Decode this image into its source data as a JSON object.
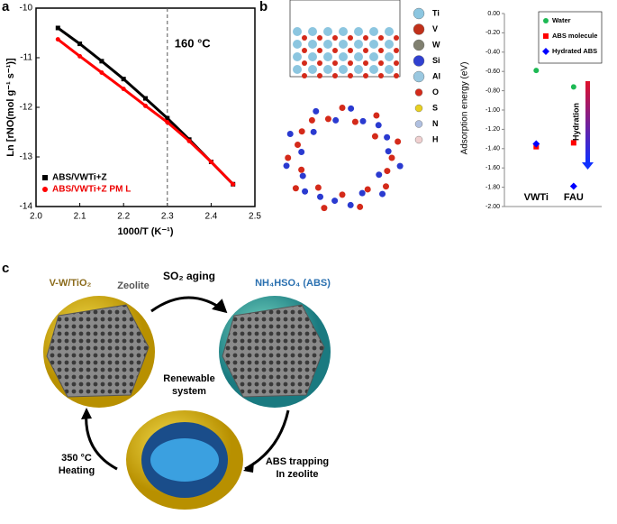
{
  "panel_labels": [
    "a",
    "b",
    "c"
  ],
  "chart_data": [
    {
      "type": "line",
      "xlabel": "1000/T (K⁻¹)",
      "ylabel": "Ln [rNO(mol g⁻¹ s⁻¹)]",
      "x": [
        2.05,
        2.1,
        2.15,
        2.2,
        2.25,
        2.3,
        2.35,
        2.4,
        2.45
      ],
      "series": [
        {
          "name": "ABS/VWTi+Z",
          "color": "#000000",
          "marker": "square",
          "values": [
            -10.4,
            -10.72,
            -11.07,
            -11.43,
            -11.82,
            -12.22,
            -12.65,
            -13.1,
            -13.55
          ]
        },
        {
          "name": "ABS/VWTi+Z PM L",
          "color": "#ff0000",
          "marker": "circle",
          "values": [
            -10.63,
            -10.97,
            -11.3,
            -11.63,
            -11.97,
            -12.3,
            -12.68,
            -13.1,
            -13.55
          ]
        }
      ],
      "xlim": [
        2.0,
        2.5
      ],
      "xticks": [
        {
          "value": 2.0,
          "label": "2.0"
        },
        2.1,
        2.2,
        2.3,
        2.4,
        2.5
      ],
      "ylim": [
        -10,
        -14
      ],
      "yticks": [
        -10,
        -11,
        -12,
        -13,
        -14
      ],
      "vline": 2.3,
      "annotation": "160 °C",
      "legend": "lower-left"
    },
    {
      "type": "scatter",
      "ylabel": "Adsorption energy (eV)",
      "categories": [
        "VWTi",
        "FAU"
      ],
      "series": [
        {
          "name": "Water",
          "color": "#1db954",
          "marker": "circle",
          "values": [
            -0.59,
            -0.76
          ]
        },
        {
          "name": "ABS molecule",
          "color": "#ff0000",
          "marker": "square",
          "values": [
            -1.38,
            -1.34
          ]
        },
        {
          "name": "Hydrated ABS",
          "color": "#0000ff",
          "marker": "diamond",
          "values": [
            -1.35,
            -1.79
          ]
        }
      ],
      "ylim": [
        0,
        -2.0
      ],
      "yticks": [
        {
          "value": 0,
          "label": "0.00"
        },
        {
          "value": -0.2,
          "label": "-0.20"
        },
        {
          "value": -0.4,
          "label": "-0.40"
        },
        {
          "value": -0.6,
          "label": "-0.60"
        },
        {
          "value": -0.8,
          "label": "-0.80"
        },
        {
          "value": -1.0,
          "label": "-1.00"
        },
        {
          "value": -1.2,
          "label": "-1.20"
        },
        {
          "value": -1.4,
          "label": "-1.40"
        },
        {
          "value": -1.6,
          "label": "-1.60"
        },
        {
          "value": -1.8,
          "label": "-1.80"
        },
        {
          "value": -2.0,
          "label": "-2.00"
        }
      ],
      "arrow_label": "Hydration",
      "legend": "upper-right"
    }
  ],
  "atom_legend": [
    "Ti",
    "V",
    "W",
    "Si",
    "Al",
    "O",
    "S",
    "N",
    "H"
  ],
  "scheme": {
    "catalyst": "V-W/TiO₂",
    "zeolite": "Zeolite",
    "step1": "SO₂ aging",
    "abs": "NH₄HSO₄ (ABS)",
    "center": [
      "Renewable",
      "system"
    ],
    "step2": [
      "ABS trapping",
      "In zeolite"
    ],
    "step3": [
      "350 °C",
      "Heating"
    ]
  }
}
